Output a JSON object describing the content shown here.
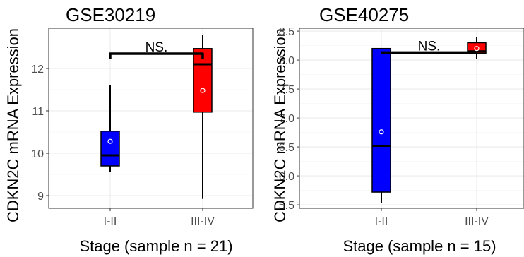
{
  "chart_data": [
    {
      "type": "boxplot",
      "title": "GSE30219",
      "xlabel": "Stage (sample n = 21)",
      "ylabel": "CDKN2C mRNA Expression",
      "categories": [
        "I-II",
        "III-IV"
      ],
      "ylim": [
        8.7,
        12.95
      ],
      "yticks": [
        9,
        10,
        11,
        12
      ],
      "grid": true,
      "series": [
        {
          "category": "I-II",
          "color": "#0000ff",
          "min": 9.55,
          "q1": 9.7,
          "median": 9.95,
          "q3": 10.52,
          "max": 11.6,
          "mean": 10.28
        },
        {
          "category": "III-IV",
          "color": "#ff0000",
          "min": 8.92,
          "q1": 10.97,
          "median": 12.1,
          "q3": 12.47,
          "max": 12.8,
          "mean": 11.48
        }
      ],
      "annotation": {
        "text": "NS.",
        "bracket_y": 12.35,
        "left_drop_to": 12.22,
        "right_drop_to": 12.22
      }
    },
    {
      "type": "boxplot",
      "title": "GSE40275",
      "xlabel": "Stage (sample n = 15)",
      "ylabel": "CDKN2C mRNA Expression",
      "categories": [
        "I-II",
        "III-IV"
      ],
      "ylim": [
        5.44,
        8.55
      ],
      "yticks": [
        5.5,
        6.0,
        6.5,
        7.0,
        7.5,
        8.0,
        8.5
      ],
      "ytick_labels": [
        "5.5",
        "6.0",
        "6.5",
        "7.0",
        "7.5",
        "8.0",
        "8.5"
      ],
      "grid": true,
      "series": [
        {
          "category": "I-II",
          "color": "#0000ff",
          "min": 5.53,
          "q1": 5.72,
          "median": 6.52,
          "q3": 8.2,
          "max": 8.2,
          "mean": 6.76
        },
        {
          "category": "III-IV",
          "color": "#ff0000",
          "min": 8.02,
          "q1": 8.12,
          "median": 8.15,
          "q3": 8.3,
          "max": 8.4,
          "mean": 8.2
        }
      ],
      "annotation": {
        "text": "NS.",
        "bracket_y": 8.13,
        "left_drop_to": 8.13,
        "right_drop_to": 8.13
      }
    }
  ]
}
